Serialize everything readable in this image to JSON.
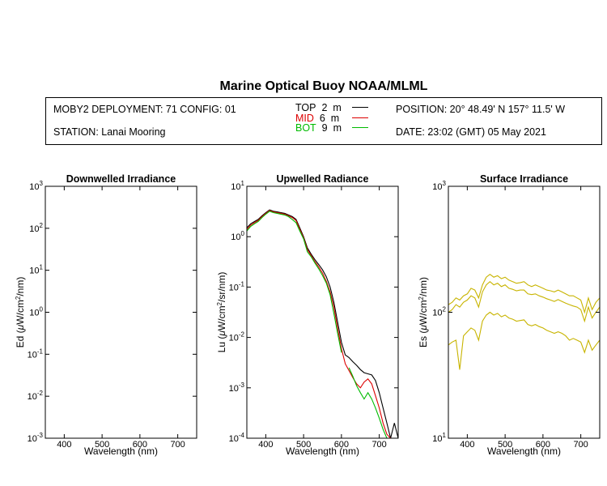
{
  "header": {
    "title": "Marine Optical Buoy NOAA/MLML",
    "deployment": "MOBY2 DEPLOYMENT: 71 CONFIG: 01",
    "station": "STATION: Lanai Mooring",
    "position": "POSITION: 20° 48.49' N   157° 11.5' W",
    "date": "DATE: 23:02 (GMT) 05 May 2021"
  },
  "legend": [
    {
      "label": "TOP",
      "depth": "2",
      "unit": "m",
      "color": "#000000"
    },
    {
      "label": "MID",
      "depth": "6",
      "unit": "m",
      "color": "#dd0000"
    },
    {
      "label": "BOT",
      "depth": "9",
      "unit": "m",
      "color": "#00bb00"
    }
  ],
  "chart_data": [
    {
      "type": "line",
      "title": "Downwelled Irradiance",
      "xlabel": "Wavelength (nm)",
      "ylabel_parts": [
        "Ed  (",
        "μ",
        "W/cm",
        "2",
        "/nm)"
      ],
      "xlim": [
        350,
        750
      ],
      "ylim": [
        0.001,
        1000
      ],
      "yscale": "log",
      "xticks": [
        400,
        500,
        600,
        700
      ],
      "yticks": [
        "10^-3",
        "10^-2",
        "10^-1",
        "10^0",
        "10^1",
        "10^2",
        "10^3"
      ],
      "series": []
    },
    {
      "type": "line",
      "title": "Upwelled Radiance",
      "xlabel": "Wavelength (nm)",
      "ylabel_parts": [
        "Lu  (",
        "μ",
        "W/cm",
        "2",
        "/sr/nm)"
      ],
      "xlim": [
        350,
        750
      ],
      "ylim": [
        0.0001,
        10
      ],
      "yscale": "log",
      "xticks": [
        400,
        500,
        600,
        700
      ],
      "yticks": [
        "10^-4",
        "10^-3",
        "10^-2",
        "10^-1",
        "10^0",
        "10^1"
      ],
      "series": [
        {
          "color": "#000000",
          "x": [
            350,
            360,
            370,
            380,
            390,
            400,
            410,
            420,
            430,
            440,
            450,
            460,
            470,
            480,
            490,
            500,
            510,
            520,
            530,
            540,
            550,
            560,
            570,
            580,
            590,
            600,
            610,
            620,
            630,
            640,
            650,
            660,
            670,
            680,
            690,
            700,
            710,
            720,
            730,
            740,
            750
          ],
          "y": [
            1.5,
            1.8,
            2.0,
            2.2,
            2.6,
            3.0,
            3.4,
            3.2,
            3.1,
            3.0,
            2.9,
            2.7,
            2.5,
            2.2,
            1.5,
            1.0,
            0.6,
            0.45,
            0.35,
            0.28,
            0.22,
            0.16,
            0.1,
            0.05,
            0.02,
            0.008,
            0.0045,
            0.004,
            0.0033,
            0.0028,
            0.0023,
            0.002,
            0.0019,
            0.0018,
            0.0014,
            0.0008,
            0.0004,
            0.0002,
            0.0001,
            0.0002,
            0.0001
          ]
        },
        {
          "color": "#dd0000",
          "x": [
            350,
            360,
            370,
            380,
            390,
            400,
            410,
            420,
            430,
            440,
            450,
            460,
            470,
            480,
            490,
            500,
            510,
            520,
            530,
            540,
            550,
            560,
            570,
            580,
            590,
            600,
            610,
            620,
            630,
            640,
            650,
            660,
            670,
            680,
            690,
            700,
            710,
            720,
            730,
            740,
            750
          ],
          "y": [
            1.4,
            1.7,
            1.9,
            2.1,
            2.5,
            2.9,
            3.3,
            3.1,
            3.0,
            2.9,
            2.8,
            2.6,
            2.4,
            2.1,
            1.4,
            0.95,
            0.55,
            0.42,
            0.32,
            0.25,
            0.19,
            0.13,
            0.08,
            0.04,
            0.015,
            0.006,
            0.003,
            0.0022,
            0.0016,
            0.0012,
            0.001,
            0.0013,
            0.0015,
            0.0012,
            0.0007,
            0.0004,
            0.0002,
            0.00012,
            0.0001,
            0.0001,
            0.0001
          ]
        },
        {
          "color": "#00bb00",
          "x": [
            350,
            360,
            370,
            380,
            390,
            400,
            410,
            420,
            430,
            440,
            450,
            460,
            470,
            480,
            490,
            500,
            510,
            520,
            530,
            540,
            550,
            560,
            570,
            580,
            590,
            600,
            610,
            620,
            630,
            640,
            650,
            660,
            670,
            680,
            690,
            700,
            710,
            720,
            730,
            740,
            750
          ],
          "y": [
            1.3,
            1.6,
            1.8,
            2.0,
            2.4,
            2.8,
            3.2,
            3.0,
            2.9,
            2.8,
            2.7,
            2.5,
            2.2,
            1.9,
            1.3,
            0.9,
            0.5,
            0.4,
            0.3,
            0.23,
            0.17,
            0.12,
            0.07,
            0.03,
            0.012,
            0.005,
            null,
            0.0025,
            0.0017,
            0.0011,
            0.0008,
            0.0006,
            0.0008,
            0.0006,
            0.0004,
            0.00025,
            0.00015,
            0.0001,
            0.0001,
            0.0001,
            0.0001
          ]
        }
      ]
    },
    {
      "type": "line",
      "title": "Surface Irradiance",
      "xlabel": "Wavelength (nm)",
      "ylabel_parts": [
        "Es  (",
        "μ",
        "W/cm",
        "2",
        "/nm)"
      ],
      "xlim": [
        350,
        750
      ],
      "ylim": [
        10,
        1000
      ],
      "yscale": "log",
      "xticks": [
        400,
        500,
        600,
        700
      ],
      "yticks": [
        "10^1",
        "10^2",
        "10^3"
      ],
      "series": [
        {
          "color": "#c8b400",
          "x": [
            350,
            360,
            370,
            380,
            390,
            400,
            410,
            420,
            430,
            440,
            450,
            460,
            470,
            480,
            490,
            500,
            510,
            520,
            530,
            540,
            550,
            560,
            570,
            580,
            590,
            600,
            610,
            620,
            630,
            640,
            650,
            660,
            670,
            680,
            690,
            700,
            710,
            720,
            730,
            740,
            750
          ],
          "y": [
            115,
            120,
            130,
            125,
            135,
            140,
            155,
            150,
            130,
            165,
            190,
            200,
            190,
            195,
            185,
            190,
            180,
            175,
            170,
            172,
            175,
            165,
            160,
            165,
            160,
            155,
            150,
            148,
            145,
            150,
            145,
            140,
            135,
            135,
            130,
            125,
            100,
            130,
            105,
            120,
            130
          ]
        },
        {
          "color": "#c8b400",
          "x": [
            350,
            360,
            370,
            380,
            390,
            400,
            410,
            420,
            430,
            440,
            450,
            460,
            470,
            480,
            490,
            500,
            510,
            520,
            530,
            540,
            550,
            560,
            570,
            580,
            590,
            600,
            610,
            620,
            630,
            640,
            650,
            660,
            670,
            680,
            690,
            700,
            710,
            720,
            730,
            740,
            750
          ],
          "y": [
            100,
            105,
            115,
            110,
            120,
            125,
            135,
            130,
            110,
            145,
            165,
            175,
            165,
            170,
            160,
            165,
            155,
            152,
            148,
            150,
            150,
            140,
            138,
            140,
            135,
            132,
            128,
            125,
            122,
            126,
            122,
            118,
            115,
            112,
            110,
            105,
            85,
            110,
            90,
            100,
            110
          ]
        },
        {
          "color": "#c8b400",
          "x": [
            350,
            360,
            370,
            380,
            390,
            400,
            410,
            420,
            430,
            440,
            450,
            460,
            470,
            480,
            490,
            500,
            510,
            520,
            530,
            540,
            550,
            560,
            570,
            580,
            590,
            600,
            610,
            620,
            630,
            640,
            650,
            660,
            670,
            680,
            690,
            700,
            710,
            720,
            730,
            740,
            750
          ],
          "y": [
            55,
            58,
            60,
            35,
            65,
            70,
            75,
            72,
            60,
            85,
            95,
            100,
            95,
            98,
            92,
            95,
            90,
            88,
            85,
            86,
            87,
            80,
            78,
            80,
            77,
            75,
            72,
            70,
            68,
            70,
            68,
            65,
            60,
            62,
            60,
            58,
            48,
            60,
            50,
            55,
            60
          ]
        }
      ]
    }
  ]
}
